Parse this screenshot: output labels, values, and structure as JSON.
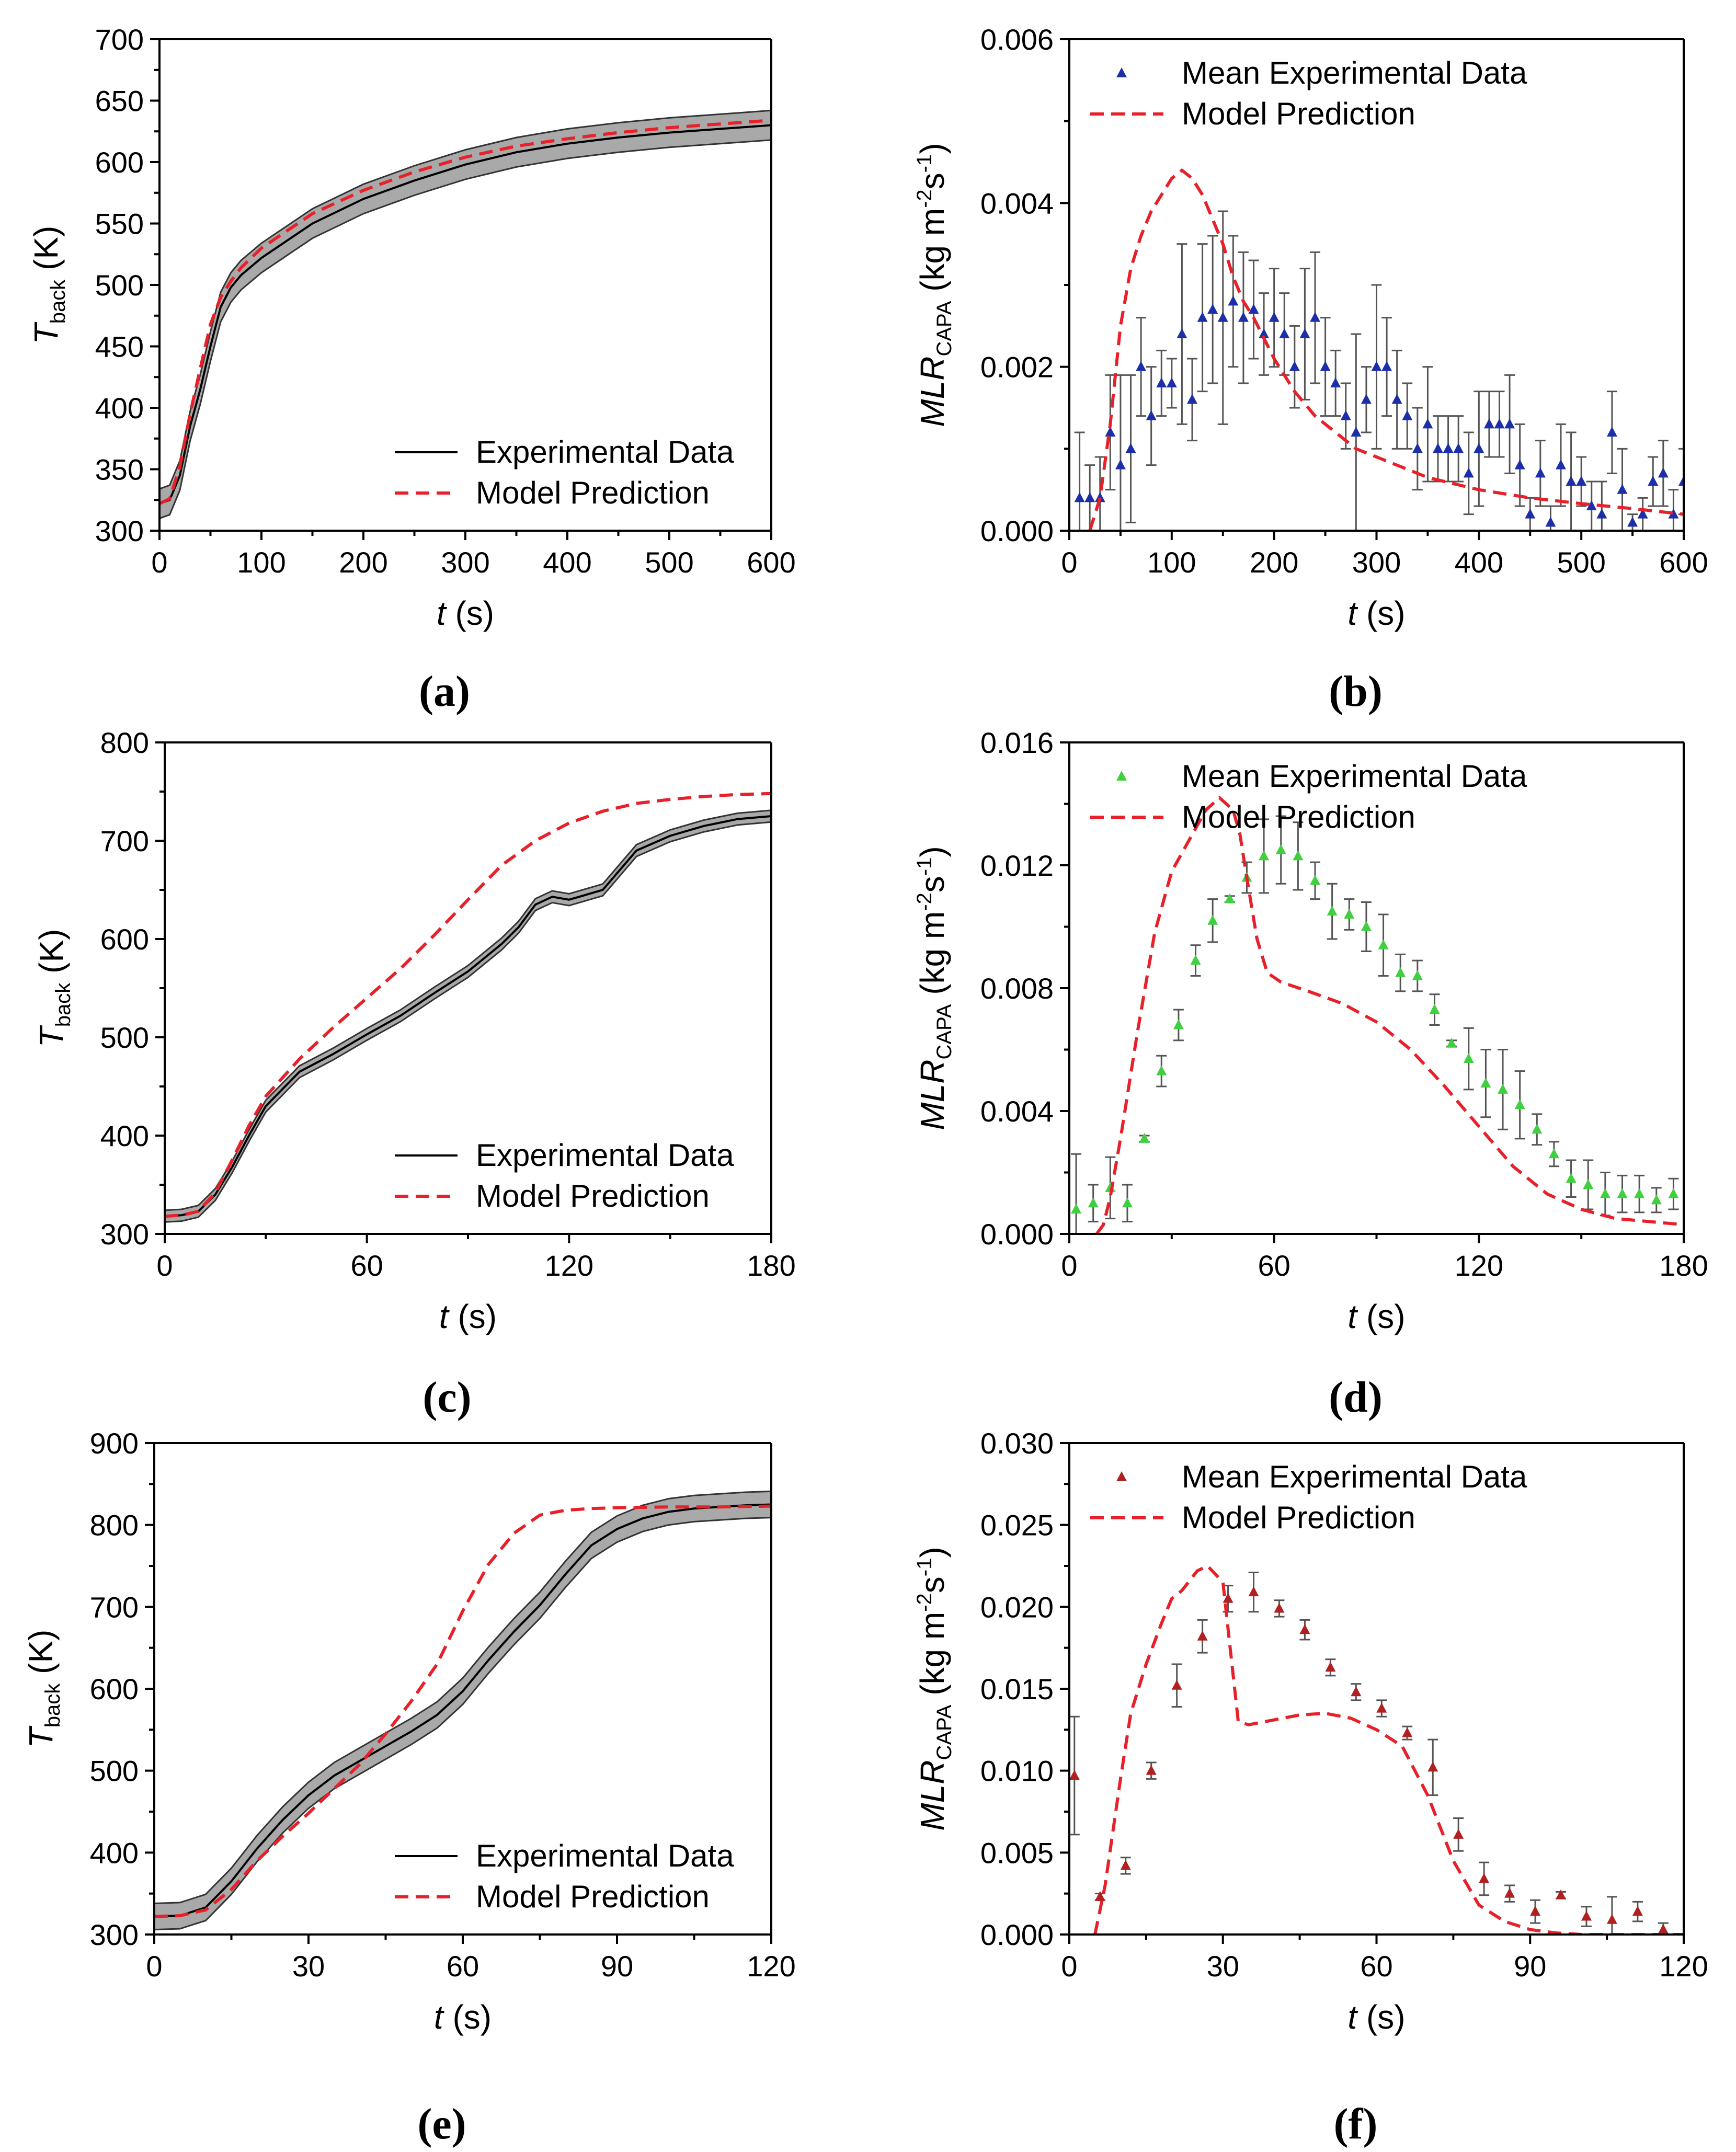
{
  "legend": {
    "experimental": "Experimental Data",
    "mean_experimental": "Mean Experimental Data",
    "model": "Model Prediction"
  },
  "labels": {
    "t_axis_italic": "t",
    "t_axis_unit": " (s)",
    "temp_main": "T",
    "temp_sub": "back",
    "temp_unit": " (K)",
    "mlr_main": "MLR",
    "mlr_sub": "CAPA",
    "mlr_unit_a": " (kg m",
    "mlr_unit_sup1": "-2",
    "mlr_unit_b": "s",
    "mlr_unit_sup2": "-1",
    "mlr_unit_c": ")"
  },
  "colors": {
    "model": "#e8202a",
    "band": "#a9a9a9",
    "marker_b": "#1c2fa8",
    "marker_d": "#3fcf3f",
    "marker_f": "#b02020"
  },
  "chart_data": [
    {
      "id": "a",
      "panel_label": "(a)",
      "type": "line",
      "xlim": [
        0,
        600
      ],
      "ylim": [
        300,
        700
      ],
      "xticks": [
        "0",
        "100",
        "200",
        "300",
        "400",
        "500",
        "600"
      ],
      "yticks": [
        "300",
        "350",
        "400",
        "450",
        "500",
        "550",
        "600",
        "650",
        "700"
      ],
      "series": [
        {
          "name": "Experimental Data",
          "x": [
            0,
            10,
            20,
            30,
            40,
            50,
            60,
            70,
            80,
            100,
            150,
            200,
            250,
            300,
            350,
            400,
            450,
            500,
            550,
            600
          ],
          "y": [
            322,
            325,
            345,
            385,
            415,
            450,
            482,
            498,
            508,
            522,
            550,
            570,
            585,
            598,
            608,
            615,
            620,
            624,
            627,
            630
          ],
          "band": 12
        },
        {
          "name": "Model Prediction",
          "x": [
            0,
            10,
            20,
            30,
            40,
            50,
            60,
            70,
            80,
            100,
            150,
            200,
            250,
            300,
            350,
            400,
            450,
            500,
            550,
            600
          ],
          "y": [
            322,
            326,
            352,
            395,
            432,
            468,
            490,
            503,
            514,
            530,
            558,
            577,
            592,
            604,
            613,
            619,
            624,
            628,
            631,
            634
          ]
        }
      ]
    },
    {
      "id": "b",
      "panel_label": "(b)",
      "type": "scatter",
      "xlim": [
        0,
        600
      ],
      "ylim": [
        0,
        0.006
      ],
      "xticks": [
        "0",
        "100",
        "200",
        "300",
        "400",
        "500",
        "600"
      ],
      "yticks": [
        "0.000",
        "0.002",
        "0.004",
        "0.006"
      ],
      "series": [
        {
          "name": "Mean Experimental Data",
          "x": [
            10,
            20,
            30,
            40,
            50,
            60,
            70,
            80,
            90,
            100,
            110,
            120,
            130,
            140,
            150,
            160,
            170,
            180,
            190,
            200,
            210,
            220,
            230,
            240,
            250,
            260,
            270,
            280,
            290,
            300,
            310,
            320,
            330,
            340,
            350,
            360,
            370,
            380,
            390,
            400,
            410,
            420,
            430,
            440,
            450,
            460,
            470,
            480,
            490,
            500,
            510,
            520,
            530,
            540,
            550,
            560,
            570,
            580,
            590,
            600
          ],
          "y": [
            0.0004,
            0.0004,
            0.0004,
            0.0012,
            0.0008,
            0.001,
            0.002,
            0.0014,
            0.0018,
            0.0018,
            0.0024,
            0.0016,
            0.0026,
            0.0027,
            0.0026,
            0.0028,
            0.0026,
            0.0027,
            0.0024,
            0.0026,
            0.0024,
            0.002,
            0.0024,
            0.0026,
            0.002,
            0.0018,
            0.0014,
            0.0012,
            0.0016,
            0.002,
            0.002,
            0.0016,
            0.0014,
            0.001,
            0.0013,
            0.001,
            0.001,
            0.001,
            0.0007,
            0.001,
            0.0013,
            0.0013,
            0.0013,
            0.0008,
            0.0002,
            0.0007,
            0.0001,
            0.0008,
            0.0006,
            0.0006,
            0.0003,
            0.0002,
            0.0012,
            0.0005,
            0.0001,
            0.0002,
            0.0006,
            0.0007,
            0.0002,
            0.0006
          ],
          "err": [
            0.0008,
            0.0004,
            0.0005,
            0.0007,
            0.0011,
            0.0009,
            0.0006,
            0.0006,
            0.0004,
            0.0003,
            0.0011,
            0.0005,
            0.0009,
            0.0009,
            0.0013,
            0.0008,
            0.0008,
            0.0006,
            0.0005,
            0.0006,
            0.0005,
            0.0005,
            0.0008,
            0.0008,
            0.0006,
            0.0004,
            0.0004,
            0.0012,
            0.0004,
            0.001,
            0.0006,
            0.0006,
            0.0004,
            0.0005,
            0.0007,
            0.0004,
            0.0004,
            0.0004,
            0.0005,
            0.0007,
            0.0004,
            0.0004,
            0.0006,
            0.0005,
            0.0002,
            0.0004,
            0.0002,
            0.0005,
            0.0006,
            0.0003,
            0.0003,
            0.0004,
            0.0005,
            0.0005,
            0.0001,
            0.0002,
            0.0003,
            0.0004,
            0.0003,
            0.0004
          ]
        },
        {
          "name": "Model Prediction",
          "x": [
            20,
            30,
            40,
            50,
            60,
            70,
            80,
            90,
            100,
            110,
            120,
            130,
            140,
            150,
            160,
            170,
            180,
            200,
            220,
            240,
            260,
            280,
            300,
            350,
            400,
            450,
            500,
            550,
            600
          ],
          "y": [
            0.0,
            0.0004,
            0.0013,
            0.0025,
            0.0032,
            0.0036,
            0.0039,
            0.0041,
            0.0043,
            0.0044,
            0.0043,
            0.0041,
            0.0038,
            0.0035,
            0.0031,
            0.0028,
            0.0026,
            0.0021,
            0.0017,
            0.0014,
            0.0012,
            0.001,
            0.0009,
            0.00065,
            0.0005,
            0.0004,
            0.00033,
            0.00027,
            0.0002
          ]
        }
      ]
    },
    {
      "id": "c",
      "panel_label": "(c)",
      "type": "line",
      "xlim": [
        0,
        180
      ],
      "ylim": [
        300,
        800
      ],
      "xticks": [
        "0",
        "60",
        "120",
        "180"
      ],
      "yticks": [
        "300",
        "400",
        "500",
        "600",
        "700",
        "800"
      ],
      "series": [
        {
          "name": "Experimental Data",
          "x": [
            0,
            5,
            10,
            15,
            20,
            25,
            30,
            40,
            50,
            60,
            70,
            80,
            90,
            100,
            105,
            110,
            115,
            120,
            125,
            130,
            135,
            140,
            150,
            160,
            170,
            180
          ],
          "y": [
            318,
            319,
            323,
            340,
            368,
            400,
            430,
            465,
            483,
            503,
            522,
            545,
            567,
            595,
            612,
            635,
            643,
            640,
            645,
            650,
            670,
            690,
            705,
            715,
            722,
            725
          ],
          "band": 6
        },
        {
          "name": "Model Prediction",
          "x": [
            0,
            5,
            10,
            15,
            20,
            25,
            30,
            40,
            50,
            60,
            70,
            80,
            90,
            100,
            110,
            120,
            130,
            140,
            150,
            160,
            170,
            180
          ],
          "y": [
            318,
            319,
            323,
            342,
            375,
            410,
            440,
            478,
            510,
            540,
            570,
            604,
            640,
            675,
            700,
            718,
            730,
            738,
            742,
            745,
            747,
            748
          ]
        }
      ]
    },
    {
      "id": "d",
      "panel_label": "(d)",
      "type": "scatter",
      "xlim": [
        0,
        180
      ],
      "ylim": [
        0,
        0.016
      ],
      "xticks": [
        "0",
        "60",
        "120",
        "180"
      ],
      "yticks": [
        "0.000",
        "0.004",
        "0.008",
        "0.012",
        "0.016"
      ],
      "series": [
        {
          "name": "Mean Experimental Data",
          "x": [
            2,
            7,
            12,
            17,
            22,
            27,
            32,
            37,
            42,
            47,
            52,
            57,
            62,
            67,
            72,
            77,
            82,
            87,
            92,
            97,
            102,
            107,
            112,
            117,
            122,
            127,
            132,
            137,
            142,
            147,
            152,
            157,
            162,
            167,
            172,
            177
          ],
          "y": [
            0.0008,
            0.001,
            0.0015,
            0.001,
            0.0031,
            0.0053,
            0.0068,
            0.0089,
            0.0102,
            0.0109,
            0.0116,
            0.0123,
            0.0125,
            0.0123,
            0.0115,
            0.0105,
            0.0104,
            0.01,
            0.0094,
            0.0085,
            0.0084,
            0.0073,
            0.0062,
            0.0057,
            0.0049,
            0.0047,
            0.0042,
            0.0034,
            0.0026,
            0.0018,
            0.0016,
            0.0013,
            0.0013,
            0.0013,
            0.0011,
            0.0013
          ],
          "err": [
            0.0018,
            0.0006,
            0.001,
            0.0006,
            0.0001,
            0.0005,
            0.0005,
            0.0005,
            0.0007,
            0.0001,
            0.0005,
            0.0012,
            0.0011,
            0.0011,
            0.0006,
            0.0009,
            0.0005,
            0.0008,
            0.001,
            0.0006,
            0.0005,
            0.0005,
            0.0001,
            0.001,
            0.0011,
            0.0013,
            0.0011,
            0.0005,
            0.0004,
            0.0006,
            0.0008,
            0.0007,
            0.0006,
            0.0006,
            0.0004,
            0.0005
          ]
        },
        {
          "name": "Model Prediction",
          "x": [
            8,
            10,
            12,
            15,
            18,
            20,
            25,
            30,
            35,
            40,
            44,
            48,
            50,
            52,
            55,
            58,
            62,
            70,
            80,
            90,
            100,
            110,
            120,
            130,
            140,
            150,
            160,
            170,
            180
          ],
          "y": [
            0.0,
            0.0003,
            0.0012,
            0.0031,
            0.0052,
            0.0066,
            0.0098,
            0.0118,
            0.0128,
            0.0138,
            0.0142,
            0.0138,
            0.013,
            0.0116,
            0.0096,
            0.0085,
            0.0082,
            0.0079,
            0.0075,
            0.0069,
            0.006,
            0.0048,
            0.0035,
            0.0022,
            0.0013,
            0.0008,
            0.0005,
            0.0004,
            0.0003
          ]
        }
      ]
    },
    {
      "id": "e",
      "panel_label": "(e)",
      "type": "line",
      "xlim": [
        0,
        120
      ],
      "ylim": [
        300,
        900
      ],
      "xticks": [
        "0",
        "30",
        "60",
        "90",
        "120"
      ],
      "yticks": [
        "300",
        "400",
        "500",
        "600",
        "700",
        "800",
        "900"
      ],
      "series": [
        {
          "name": "Experimental Data",
          "x": [
            0,
            5,
            10,
            15,
            20,
            25,
            30,
            35,
            40,
            45,
            50,
            55,
            60,
            65,
            70,
            75,
            80,
            85,
            90,
            95,
            100,
            105,
            110,
            115,
            120
          ],
          "y": [
            322,
            323,
            333,
            365,
            405,
            440,
            470,
            494,
            512,
            530,
            548,
            568,
            597,
            635,
            670,
            702,
            740,
            775,
            795,
            808,
            816,
            820,
            822,
            824,
            825
          ],
          "band": 16
        },
        {
          "name": "Model Prediction",
          "x": [
            0,
            5,
            10,
            15,
            20,
            25,
            30,
            35,
            40,
            45,
            50,
            55,
            60,
            65,
            70,
            75,
            80,
            85,
            90,
            100,
            110,
            120
          ],
          "y": [
            322,
            323,
            330,
            355,
            390,
            420,
            448,
            478,
            508,
            545,
            585,
            630,
            695,
            752,
            790,
            812,
            818,
            820,
            821,
            822,
            822,
            823
          ]
        }
      ]
    },
    {
      "id": "f",
      "panel_label": "(f)",
      "type": "scatter",
      "xlim": [
        0,
        120
      ],
      "ylim": [
        0,
        0.03
      ],
      "xticks": [
        "0",
        "30",
        "60",
        "90",
        "120"
      ],
      "yticks": [
        "0.000",
        "0.005",
        "0.010",
        "0.015",
        "0.020",
        "0.025",
        "0.030"
      ],
      "series": [
        {
          "name": "Mean Experimental Data",
          "x": [
            1,
            6,
            11,
            16,
            21,
            26,
            31,
            36,
            41,
            46,
            51,
            56,
            61,
            66,
            71,
            76,
            81,
            86,
            91,
            96,
            101,
            106,
            111,
            116
          ],
          "y": [
            0.0097,
            0.0023,
            0.0042,
            0.01,
            0.0152,
            0.0182,
            0.0205,
            0.0209,
            0.0199,
            0.0186,
            0.0163,
            0.0148,
            0.0138,
            0.0123,
            0.0102,
            0.0061,
            0.0034,
            0.0025,
            0.0014,
            0.0024,
            0.0011,
            0.0009,
            0.0014,
            0.0003
          ],
          "err": [
            0.0036,
            0.0002,
            0.0005,
            0.0005,
            0.0013,
            0.001,
            0.0008,
            0.0012,
            0.0005,
            0.0006,
            0.0005,
            0.0005,
            0.0005,
            0.0004,
            0.0017,
            0.001,
            0.001,
            0.0005,
            0.0007,
            0.0002,
            0.0006,
            0.0014,
            0.0006,
            0.0004
          ]
        },
        {
          "name": "Model Prediction",
          "x": [
            5,
            7,
            10,
            12,
            15,
            18,
            20,
            22,
            25,
            27,
            30,
            33,
            35,
            40,
            45,
            50,
            55,
            60,
            65,
            70,
            75,
            80,
            85,
            90,
            95,
            100,
            110,
            120
          ],
          "y": [
            0.0,
            0.003,
            0.0095,
            0.0135,
            0.0165,
            0.019,
            0.0205,
            0.021,
            0.0222,
            0.0225,
            0.0215,
            0.013,
            0.0128,
            0.0131,
            0.0134,
            0.0135,
            0.0132,
            0.0125,
            0.0115,
            0.0085,
            0.0045,
            0.0018,
            0.0008,
            0.0003,
            0.0001,
            0.0,
            0.0,
            0.0
          ]
        }
      ]
    }
  ]
}
